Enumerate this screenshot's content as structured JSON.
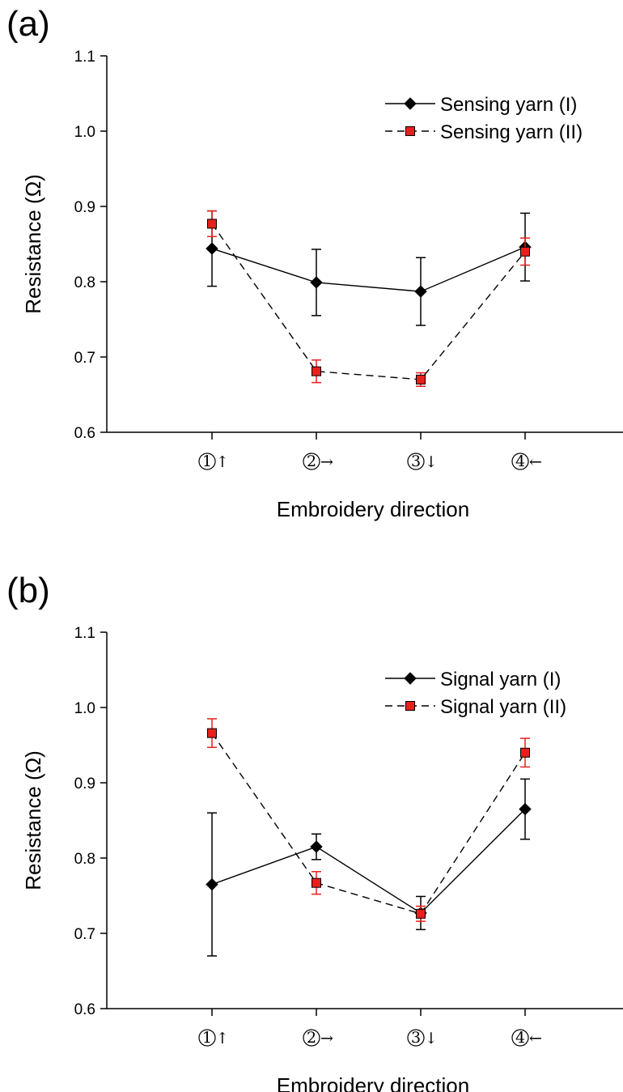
{
  "chart_data": [
    {
      "type": "line",
      "panel_label": "(a)",
      "xlabel": "Embroidery direction",
      "ylabel": "Resistance (Ω)",
      "ylim": [
        0.6,
        1.1
      ],
      "yticks": [
        "0.6",
        "0.7",
        "0.8",
        "0.9",
        "1.0",
        "1.1"
      ],
      "categories": [
        {
          "num": "1",
          "arrow": "↑"
        },
        {
          "num": "2",
          "arrow": "→"
        },
        {
          "num": "3",
          "arrow": "↓"
        },
        {
          "num": "4",
          "arrow": "←"
        }
      ],
      "grid": false,
      "legend_position": "top-right",
      "series": [
        {
          "name": "Sensing yarn (I)",
          "marker": "diamond",
          "line": "solid",
          "color": "#000000",
          "error_color": "#000000",
          "values": [
            0.844,
            0.799,
            0.787,
            0.846
          ],
          "errors": [
            0.05,
            0.044,
            0.045,
            0.045
          ]
        },
        {
          "name": "Sensing yarn (II)",
          "marker": "square",
          "line": "dashed",
          "color": "#e8201c",
          "error_color": "#e8201c",
          "values": [
            0.877,
            0.681,
            0.67,
            0.84
          ],
          "errors": [
            0.017,
            0.015,
            0.009,
            0.018
          ]
        }
      ]
    },
    {
      "type": "line",
      "panel_label": "(b)",
      "xlabel": "Embroidery direction",
      "ylabel": "Resistance (Ω)",
      "ylim": [
        0.6,
        1.1
      ],
      "yticks": [
        "0.6",
        "0.7",
        "0.8",
        "0.9",
        "1.0",
        "1.1"
      ],
      "categories": [
        {
          "num": "1",
          "arrow": "↑"
        },
        {
          "num": "2",
          "arrow": "→"
        },
        {
          "num": "3",
          "arrow": "↓"
        },
        {
          "num": "4",
          "arrow": "←"
        }
      ],
      "grid": false,
      "legend_position": "top-right",
      "series": [
        {
          "name": "Signal yarn (I)",
          "marker": "diamond",
          "line": "solid",
          "color": "#000000",
          "error_color": "#000000",
          "values": [
            0.765,
            0.815,
            0.727,
            0.865
          ],
          "errors": [
            0.095,
            0.017,
            0.022,
            0.04
          ]
        },
        {
          "name": "Signal yarn (II)",
          "marker": "square",
          "line": "dashed",
          "color": "#e8201c",
          "error_color": "#e8201c",
          "values": [
            0.966,
            0.767,
            0.726,
            0.94
          ],
          "errors": [
            0.019,
            0.015,
            0.01,
            0.019
          ]
        }
      ]
    }
  ]
}
